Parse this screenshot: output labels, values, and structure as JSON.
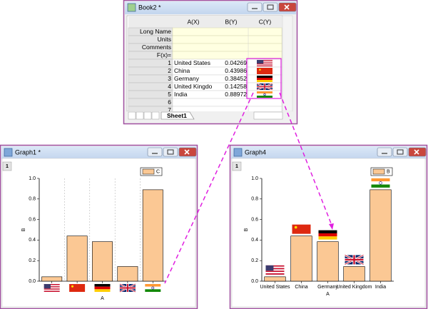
{
  "workbook": {
    "title": "Book2 *",
    "columns": [
      "A(X)",
      "B(Y)",
      "C(Y)"
    ],
    "header_rows": [
      "Long Name",
      "Units",
      "Comments",
      "F(x)="
    ],
    "rows": [
      {
        "n": 1,
        "a": "United States",
        "b": 0.04269
      },
      {
        "n": 2,
        "a": "China",
        "b": 0.43986
      },
      {
        "n": 3,
        "a": "Germany",
        "b": 0.38452
      },
      {
        "n": 4,
        "a": "United Kingdo",
        "b": 0.14258
      },
      {
        "n": 5,
        "a": "India",
        "b": 0.88972
      },
      {
        "n": 6
      },
      {
        "n": 7
      }
    ],
    "sheet_tab": "Sheet1"
  },
  "graphs": [
    {
      "title": "Graph1 *",
      "layer": 1,
      "legend": "C",
      "xlabel": "A",
      "ylabel": "B",
      "ylim": [
        0,
        1.0
      ],
      "yticks": [
        {
          "value": 0,
          "label": "0.0"
        },
        {
          "value": 0.2,
          "label": "0.2"
        },
        {
          "value": 0.4,
          "label": "0.4"
        },
        {
          "value": 0.6,
          "label": "0.6"
        },
        {
          "value": 0.8,
          "label": "0.8"
        },
        {
          "value": 1.0,
          "label": "1.0"
        }
      ]
    },
    {
      "title": "Graph4",
      "layer": 1,
      "legend": "B",
      "xlabel": "A",
      "ylabel": "B",
      "ylim": [
        0,
        1.0
      ],
      "yticks": [
        {
          "value": 0,
          "label": "0.0"
        },
        {
          "value": 0.2,
          "label": "0.2"
        },
        {
          "value": 0.4,
          "label": "0.4"
        },
        {
          "value": 0.6,
          "label": "0.6"
        },
        {
          "value": 0.8,
          "label": "0.8"
        },
        {
          "value": 1.0,
          "label": "1.0"
        }
      ],
      "categories": [
        "United States",
        "China",
        "Germany",
        "United Kingdom",
        "India"
      ]
    }
  ]
}
